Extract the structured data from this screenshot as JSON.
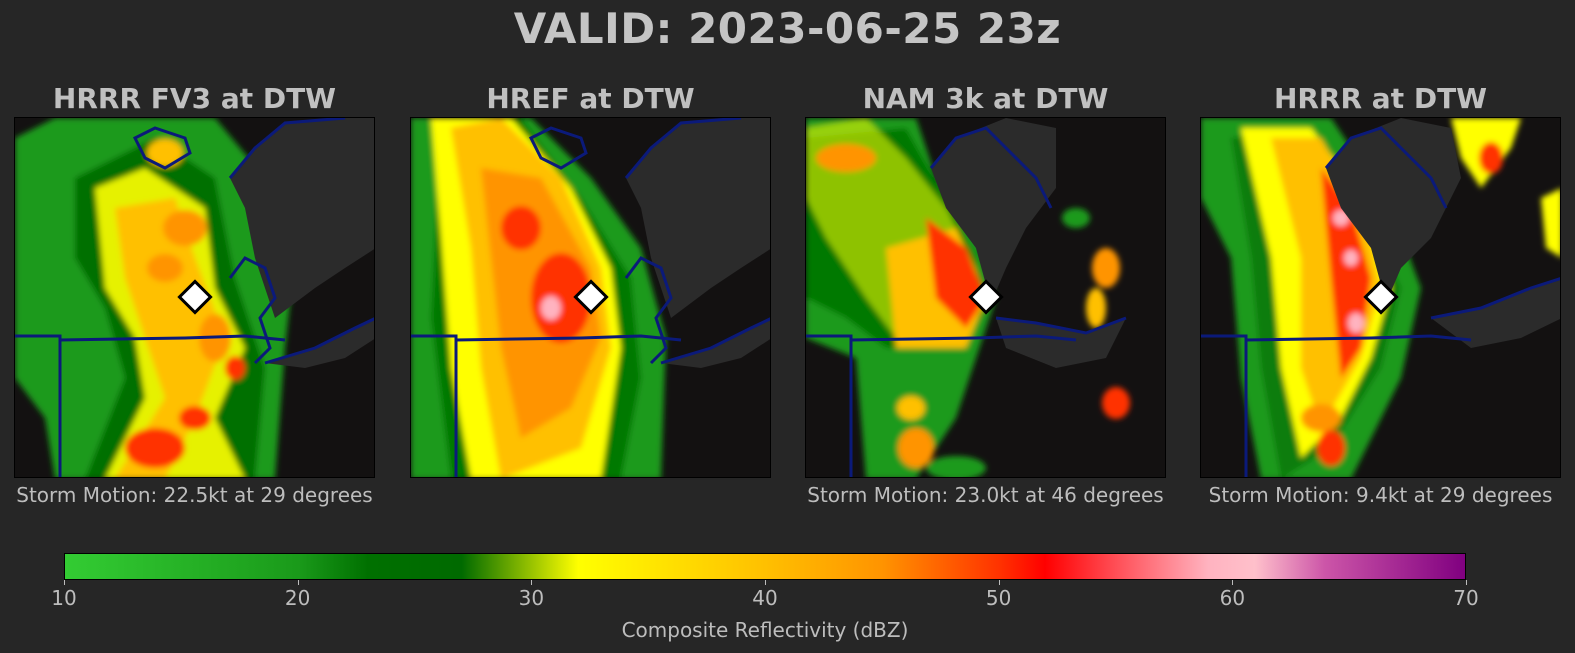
{
  "title": "VALID: 2023-06-25 23z",
  "panels": [
    {
      "title": "HRRR FV3 at DTW",
      "storm_motion": "Storm Motion: 22.5kt at 29 degrees"
    },
    {
      "title": "HREF at DTW",
      "storm_motion": ""
    },
    {
      "title": "NAM 3k at DTW",
      "storm_motion": "Storm Motion: 23.0kt at 46 degrees"
    },
    {
      "title": "HRRR at DTW",
      "storm_motion": "Storm Motion: 9.4kt at 29 degrees"
    }
  ],
  "colorbar": {
    "label": "Composite Reflectivity (dBZ)",
    "min": 10,
    "max": 70,
    "ticks": [
      "10",
      "20",
      "30",
      "40",
      "50",
      "60",
      "70"
    ],
    "stops": [
      {
        "dbz": 10,
        "color": "#33cc33"
      },
      {
        "dbz": 20,
        "color": "#1a9a1a"
      },
      {
        "dbz": 23,
        "color": "#007000"
      },
      {
        "dbz": 27,
        "color": "#006a00"
      },
      {
        "dbz": 32,
        "color": "#ffff00"
      },
      {
        "dbz": 40,
        "color": "#ffc000"
      },
      {
        "dbz": 45,
        "color": "#ff9400"
      },
      {
        "dbz": 50,
        "color": "#ff3300"
      },
      {
        "dbz": 52,
        "color": "#ff0000"
      },
      {
        "dbz": 55,
        "color": "#ff4d55"
      },
      {
        "dbz": 59,
        "color": "#ffb3c0"
      },
      {
        "dbz": 61,
        "color": "#ffc0cb"
      },
      {
        "dbz": 64,
        "color": "#cc55a8"
      },
      {
        "dbz": 70,
        "color": "#800080"
      }
    ]
  },
  "colors": {
    "background": "#262626",
    "land": "#131111",
    "water": "#2b2b2b",
    "borders": "#0b1a7a"
  },
  "marker": "white-diamond-icon"
}
